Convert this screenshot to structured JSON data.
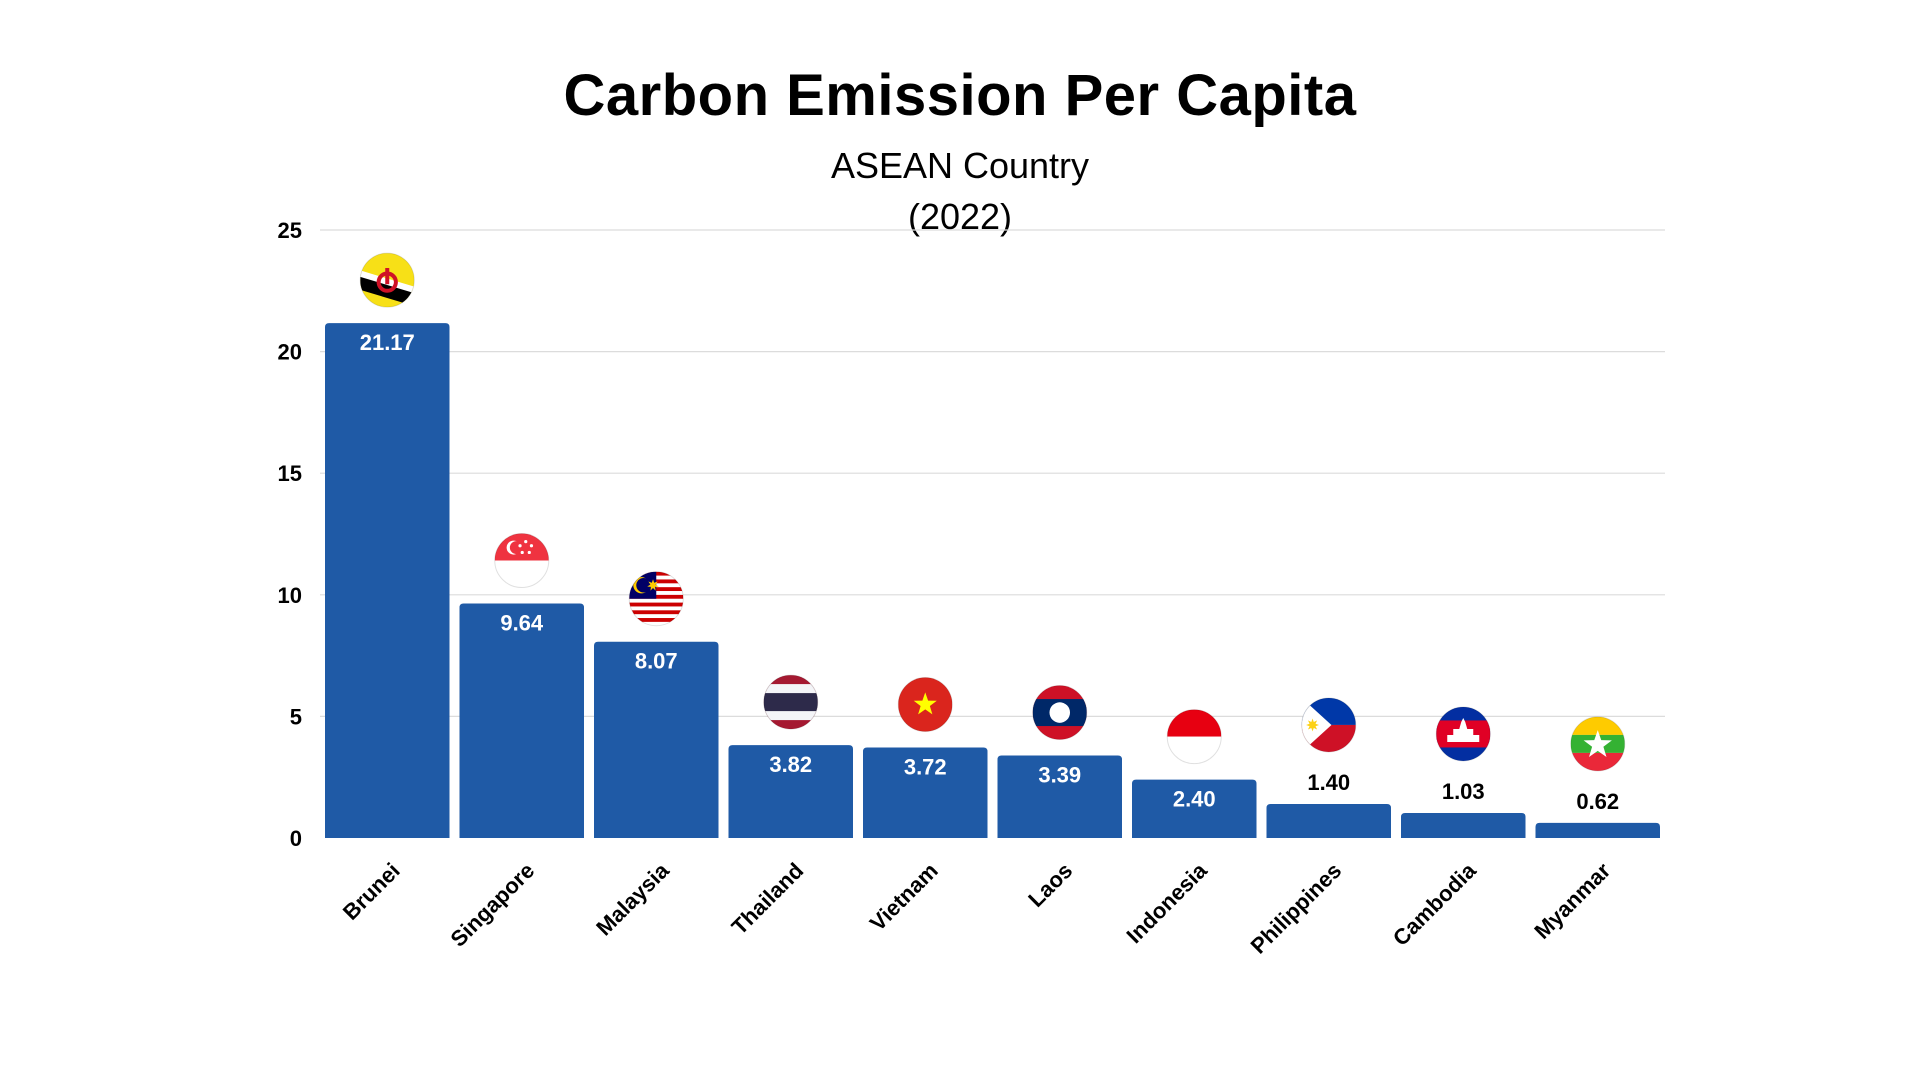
{
  "chart_data": {
    "type": "bar",
    "title": "Carbon Emission Per Capita",
    "subtitle_line1": "ASEAN Country",
    "subtitle_line2": "(2022)",
    "xlabel": "",
    "ylabel": "",
    "ylim": [
      0,
      25
    ],
    "yticks": [
      0,
      5,
      10,
      15,
      20,
      25
    ],
    "grid": true,
    "categories": [
      "Brunei",
      "Singapore",
      "Malaysia",
      "Thailand",
      "Vietnam",
      "Laos",
      "Indonesia",
      "Philippines",
      "Cambodia",
      "Myanmar"
    ],
    "values": [
      21.17,
      9.64,
      8.07,
      3.82,
      3.72,
      3.39,
      2.4,
      1.4,
      1.03,
      0.62
    ],
    "value_labels": [
      "21.17",
      "9.64",
      "8.07",
      "3.82",
      "3.72",
      "3.39",
      "2.40",
      "1.40",
      "1.03",
      "0.62"
    ],
    "flag_icons": [
      "brunei-flag-icon",
      "singapore-flag-icon",
      "malaysia-flag-icon",
      "thailand-flag-icon",
      "vietnam-flag-icon",
      "laos-flag-icon",
      "indonesia-flag-icon",
      "philippines-flag-icon",
      "cambodia-flag-icon",
      "myanmar-flag-icon"
    ]
  },
  "colors": {
    "bar": "#1f5aa6",
    "grid": "#dcdcdc",
    "label_inside": "#ffffff",
    "label_outside": "#000000"
  }
}
